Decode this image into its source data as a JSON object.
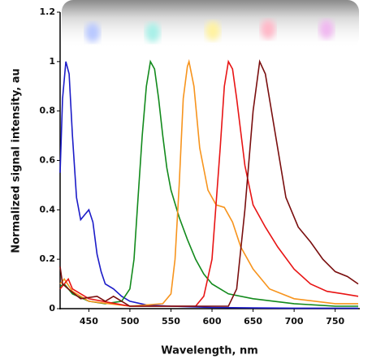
{
  "chart_data": {
    "type": "line",
    "x_label": "Wavelength, nm",
    "y_label": "Normalized signal intensity, au",
    "xlim": [
      415,
      780
    ],
    "xticks": [
      450,
      500,
      550,
      600,
      650,
      700,
      750
    ],
    "ylim": [
      0,
      1.2
    ],
    "yticks": [
      0,
      0.2,
      0.4,
      0.6,
      0.8,
      1,
      1.2
    ],
    "series": [
      {
        "color": "#1c1cc8",
        "x": [
          415,
          418,
          422,
          426,
          430,
          435,
          440,
          445,
          450,
          455,
          460,
          465,
          470,
          480,
          490,
          500,
          520,
          550,
          600,
          650,
          700,
          750,
          778
        ],
        "values": [
          0.55,
          0.85,
          1.0,
          0.95,
          0.7,
          0.45,
          0.36,
          0.38,
          0.4,
          0.35,
          0.22,
          0.15,
          0.1,
          0.08,
          0.05,
          0.03,
          0.015,
          0.01,
          0.005,
          0.003,
          0.002,
          0.002,
          0.002
        ]
      },
      {
        "color": "#128a1c",
        "x": [
          415,
          420,
          430,
          450,
          470,
          490,
          500,
          505,
          510,
          515,
          520,
          525,
          530,
          535,
          540,
          545,
          550,
          560,
          570,
          580,
          590,
          600,
          620,
          650,
          700,
          750,
          778
        ],
        "values": [
          0.09,
          0.1,
          0.06,
          0.03,
          0.02,
          0.03,
          0.08,
          0.2,
          0.45,
          0.7,
          0.9,
          1.0,
          0.97,
          0.85,
          0.7,
          0.57,
          0.48,
          0.37,
          0.28,
          0.2,
          0.14,
          0.1,
          0.06,
          0.04,
          0.02,
          0.01,
          0.01
        ]
      },
      {
        "color": "#f7941d",
        "x": [
          415,
          420,
          430,
          450,
          500,
          540,
          550,
          555,
          560,
          565,
          570,
          572,
          578,
          585,
          595,
          605,
          615,
          625,
          635,
          650,
          670,
          700,
          750,
          778
        ],
        "values": [
          0.1,
          0.12,
          0.07,
          0.03,
          0.01,
          0.02,
          0.06,
          0.2,
          0.5,
          0.85,
          0.98,
          1.0,
          0.9,
          0.65,
          0.48,
          0.42,
          0.41,
          0.35,
          0.25,
          0.16,
          0.08,
          0.04,
          0.02,
          0.02
        ]
      },
      {
        "color": "#e81414",
        "x": [
          415,
          420,
          425,
          430,
          450,
          500,
          580,
          590,
          600,
          610,
          615,
          620,
          625,
          630,
          640,
          650,
          665,
          680,
          700,
          720,
          740,
          760,
          778
        ],
        "values": [
          0.08,
          0.1,
          0.12,
          0.08,
          0.04,
          0.01,
          0.01,
          0.05,
          0.2,
          0.65,
          0.9,
          1.0,
          0.97,
          0.85,
          0.58,
          0.42,
          0.33,
          0.25,
          0.16,
          0.1,
          0.07,
          0.06,
          0.05
        ]
      },
      {
        "color": "#7a0e0e",
        "x": [
          415,
          418,
          425,
          440,
          460,
          470,
          480,
          490,
          500,
          620,
          630,
          640,
          650,
          658,
          665,
          675,
          690,
          705,
          720,
          735,
          750,
          765,
          778
        ],
        "values": [
          0.17,
          0.1,
          0.08,
          0.04,
          0.05,
          0.03,
          0.05,
          0.03,
          0.01,
          0.01,
          0.08,
          0.4,
          0.8,
          1.0,
          0.95,
          0.75,
          0.45,
          0.33,
          0.27,
          0.2,
          0.15,
          0.13,
          0.1
        ]
      }
    ]
  }
}
